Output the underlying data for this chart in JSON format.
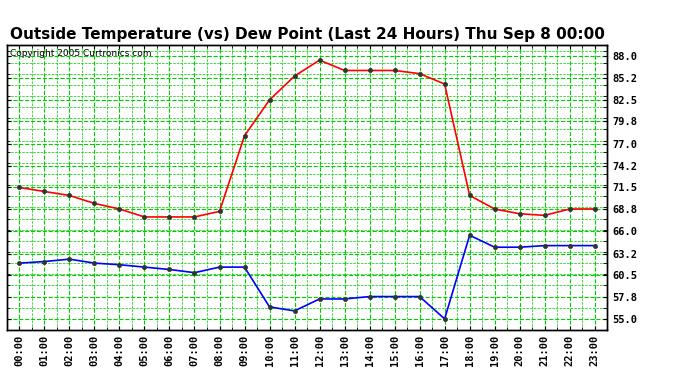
{
  "title": "Outside Temperature (vs) Dew Point (Last 24 Hours) Thu Sep 8 00:00",
  "copyright": "Copyright 2005 Curtronics.com",
  "x_labels": [
    "00:00",
    "01:00",
    "02:00",
    "03:00",
    "04:00",
    "05:00",
    "06:00",
    "07:00",
    "08:00",
    "09:00",
    "10:00",
    "11:00",
    "12:00",
    "13:00",
    "14:00",
    "15:00",
    "16:00",
    "17:00",
    "18:00",
    "19:00",
    "20:00",
    "21:00",
    "22:00",
    "23:00"
  ],
  "temp_data": [
    71.5,
    71.0,
    70.5,
    69.5,
    68.8,
    67.8,
    67.8,
    67.8,
    68.5,
    78.0,
    82.5,
    85.5,
    87.5,
    86.2,
    86.2,
    86.2,
    85.8,
    84.5,
    70.5,
    68.8,
    68.2,
    68.0,
    68.8,
    68.8
  ],
  "dew_data": [
    62.0,
    62.2,
    62.5,
    62.0,
    61.8,
    61.5,
    61.2,
    60.8,
    61.5,
    61.5,
    56.5,
    56.0,
    57.5,
    57.5,
    57.8,
    57.8,
    57.8,
    55.0,
    65.5,
    64.0,
    64.0,
    64.2,
    64.2,
    64.2
  ],
  "temp_color": "#FF0000",
  "dew_color": "#0000FF",
  "bg_color": "#FFFFFF",
  "plot_bg_color": "#FFFFFF",
  "grid_color": "#00CC00",
  "border_color": "#000000",
  "yticks": [
    55.0,
    57.8,
    60.5,
    63.2,
    66.0,
    68.8,
    71.5,
    74.2,
    77.0,
    79.8,
    82.5,
    85.2,
    88.0
  ],
  "ylim": [
    53.6,
    89.4
  ],
  "title_fontsize": 11,
  "tick_fontsize": 7.5,
  "copyright_fontsize": 6.5
}
